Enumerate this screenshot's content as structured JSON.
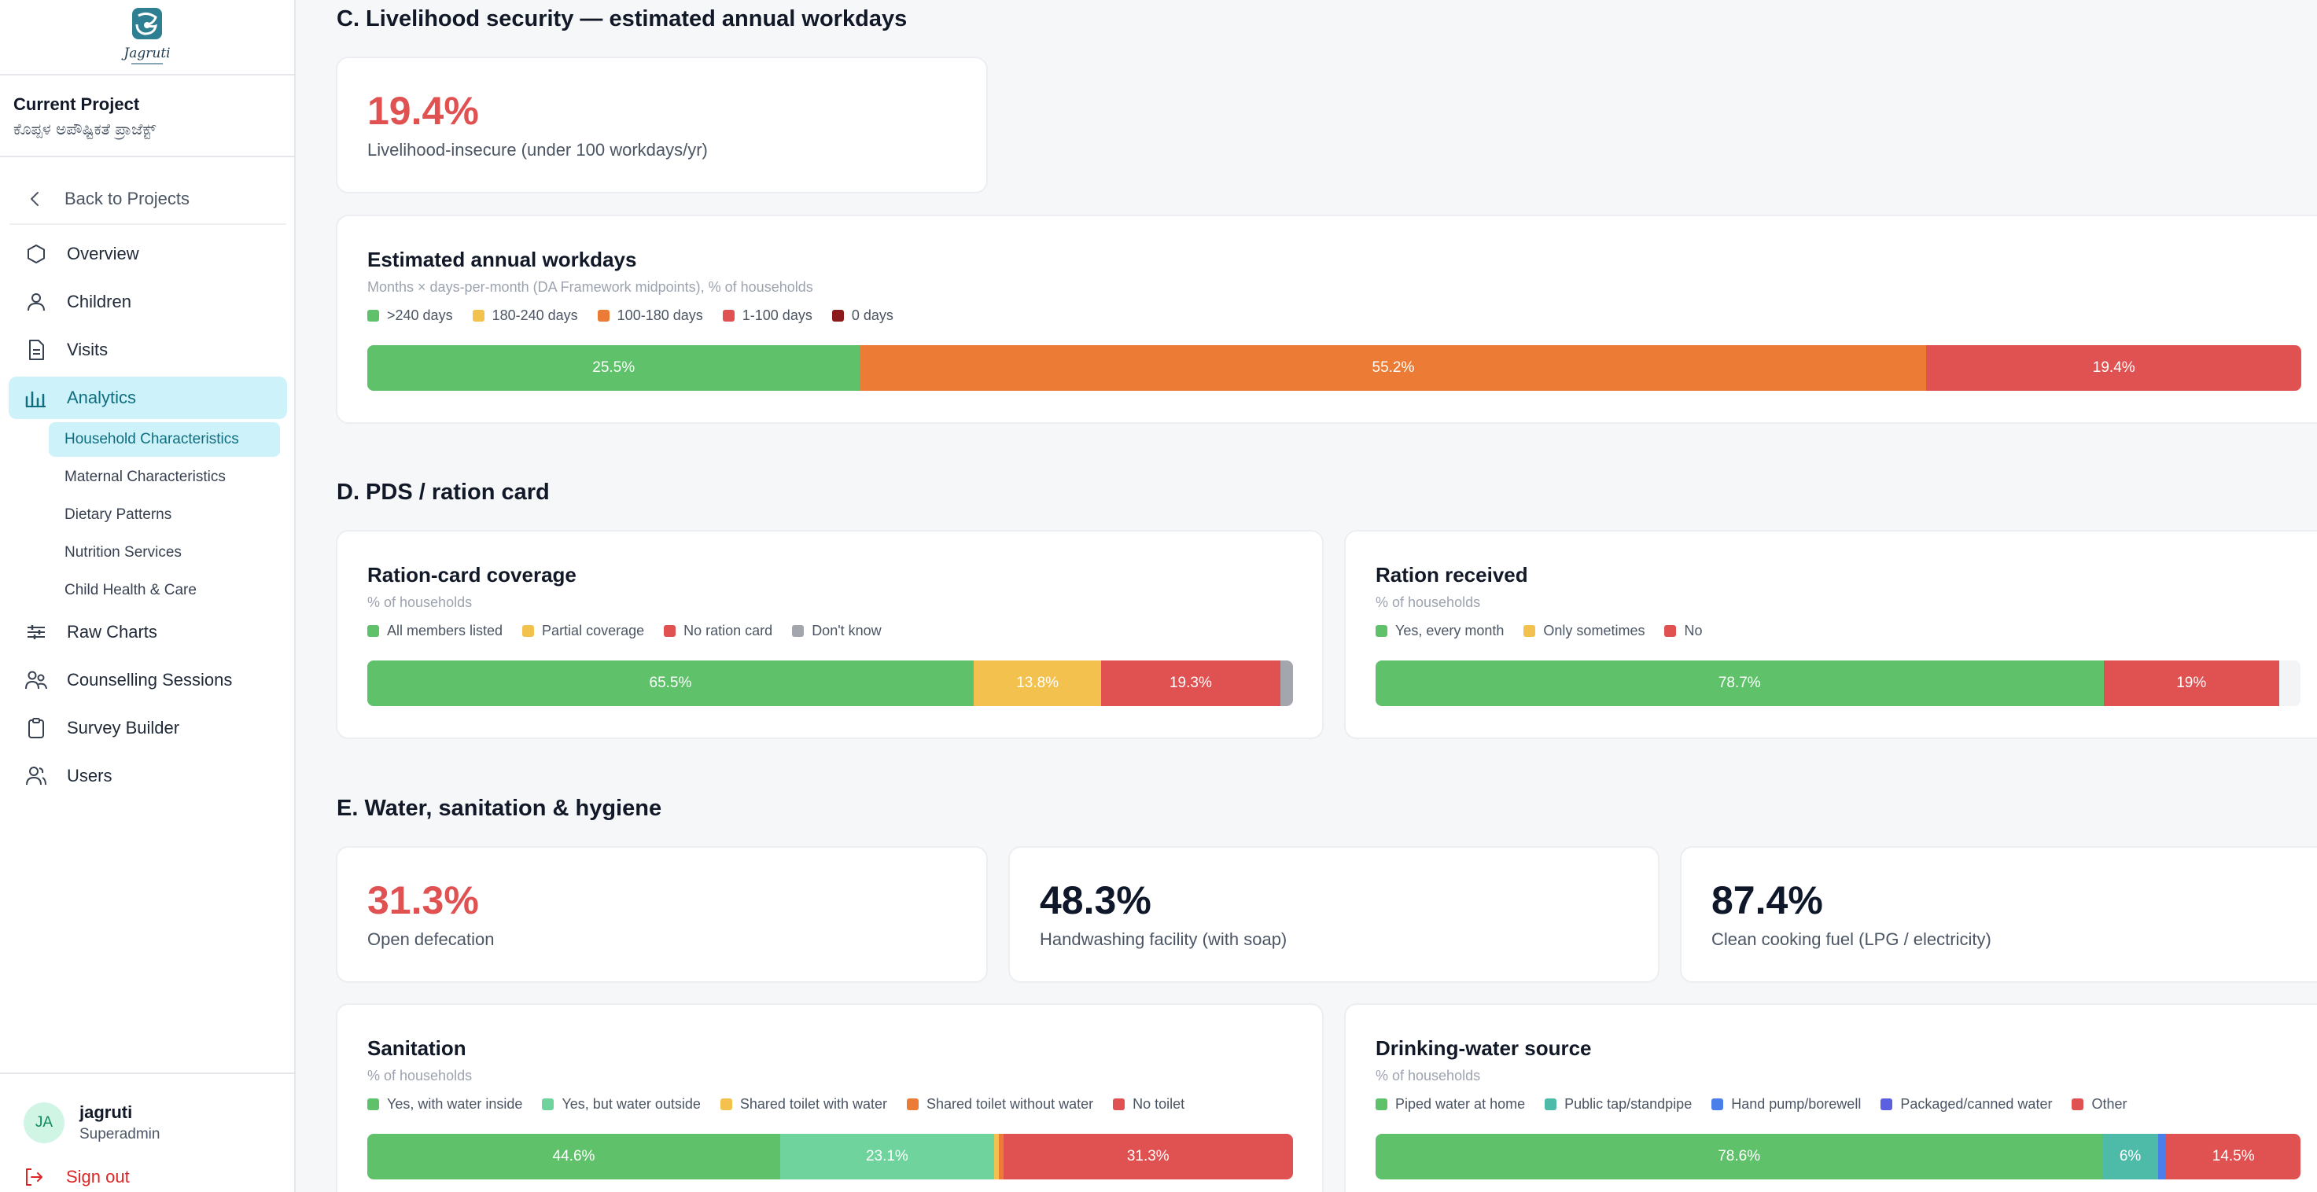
{
  "app": {
    "logo_text": "Jagruti"
  },
  "sidebar": {
    "project_title": "Current Project",
    "project_name": "ಕೊಪ್ಪಳ ಅಪೌಷ್ಟಿಕತೆ ಪ್ರಾಜೆಕ್ಟ್",
    "back_label": "Back to Projects",
    "items": [
      {
        "label": "Overview",
        "icon": "hexagon-icon"
      },
      {
        "label": "Children",
        "icon": "user-icon"
      },
      {
        "label": "Visits",
        "icon": "document-icon"
      },
      {
        "label": "Analytics",
        "icon": "analytics-icon"
      },
      {
        "label": "Raw Charts",
        "icon": "chart-icon"
      },
      {
        "label": "Counselling Sessions",
        "icon": "users-icon"
      },
      {
        "label": "Survey Builder",
        "icon": "clipboard-icon"
      },
      {
        "label": "Users",
        "icon": "user-group-icon"
      }
    ],
    "analytics_sub": [
      "Household Characteristics",
      "Maternal Characteristics",
      "Dietary Patterns",
      "Nutrition Services",
      "Child Health & Care"
    ],
    "user": {
      "initials": "JA",
      "name": "jagruti",
      "role": "Superadmin"
    },
    "signout_label": "Sign out"
  },
  "sections": {
    "c": {
      "title": "C. Livelihood security — estimated annual workdays"
    },
    "d": {
      "title": "D. PDS / ration card"
    },
    "e": {
      "title": "E. Water, sanitation & hygiene"
    }
  },
  "stats": {
    "livelihood": {
      "value": "19.4%",
      "label": "Livelihood-insecure (under 100 workdays/yr)"
    },
    "open_defecation": {
      "value": "31.3%",
      "label": "Open defecation"
    },
    "handwashing": {
      "value": "48.3%",
      "label": "Handwashing facility (with soap)"
    },
    "cooking_fuel": {
      "value": "87.4%",
      "label": "Clean cooking fuel (LPG / electricity)"
    }
  },
  "colors": {
    "green": "#5fc26a",
    "yellow": "#f2c14e",
    "orange": "#ec7c35",
    "red": "#e05252",
    "darkred": "#8b1a1a",
    "gray": "#a3a6ad",
    "teal": "#4dbba8",
    "mint": "#6fd39e",
    "blue": "#4a7ee8",
    "indigo": "#5b5fe0"
  },
  "charts": {
    "workdays": {
      "title": "Estimated annual workdays",
      "subtitle": "Months × days-per-month (DA Framework midpoints), % of households",
      "legend": [
        {
          "label": ">240 days",
          "color": "#5fc26a"
        },
        {
          "label": "180-240 days",
          "color": "#f2c14e"
        },
        {
          "label": "100-180 days",
          "color": "#ec7c35"
        },
        {
          "label": "1-100 days",
          "color": "#e05252"
        },
        {
          "label": "0 days",
          "color": "#8b1a1a"
        }
      ],
      "segments": [
        {
          "value": 25.5,
          "label": "25.5%",
          "color": "#5fc26a"
        },
        {
          "value": 55.2,
          "label": "55.2%",
          "color": "#ec7c35"
        },
        {
          "value": 19.4,
          "label": "19.4%",
          "color": "#e05252"
        }
      ]
    },
    "ration_coverage": {
      "title": "Ration-card coverage",
      "subtitle": "% of households",
      "legend": [
        {
          "label": "All members listed",
          "color": "#5fc26a"
        },
        {
          "label": "Partial coverage",
          "color": "#f2c14e"
        },
        {
          "label": "No ration card",
          "color": "#e05252"
        },
        {
          "label": "Don't know",
          "color": "#a3a6ad"
        }
      ],
      "segments": [
        {
          "value": 65.5,
          "label": "65.5%",
          "color": "#5fc26a"
        },
        {
          "value": 13.8,
          "label": "13.8%",
          "color": "#f2c14e"
        },
        {
          "value": 19.3,
          "label": "19.3%",
          "color": "#e05252"
        },
        {
          "value": 1.4,
          "label": "",
          "color": "#a3a6ad"
        }
      ]
    },
    "ration_received": {
      "title": "Ration received",
      "subtitle": "% of households",
      "legend": [
        {
          "label": "Yes, every month",
          "color": "#5fc26a"
        },
        {
          "label": "Only sometimes",
          "color": "#f2c14e"
        },
        {
          "label": "No",
          "color": "#e05252"
        }
      ],
      "segments": [
        {
          "value": 78.7,
          "label": "78.7%",
          "color": "#5fc26a"
        },
        {
          "value": 19,
          "label": "19%",
          "color": "#e05252"
        }
      ]
    },
    "sanitation": {
      "title": "Sanitation",
      "subtitle": "% of households",
      "legend": [
        {
          "label": "Yes, with water inside",
          "color": "#5fc26a"
        },
        {
          "label": "Yes, but water outside",
          "color": "#6fd39e"
        },
        {
          "label": "Shared toilet with water",
          "color": "#f2c14e"
        },
        {
          "label": "Shared toilet without water",
          "color": "#ec7c35"
        },
        {
          "label": "No toilet",
          "color": "#e05252"
        }
      ],
      "segments": [
        {
          "value": 44.6,
          "label": "44.6%",
          "color": "#5fc26a"
        },
        {
          "value": 23.1,
          "label": "23.1%",
          "color": "#6fd39e"
        },
        {
          "value": 0.5,
          "label": "",
          "color": "#f2c14e"
        },
        {
          "value": 0.5,
          "label": "",
          "color": "#ec7c35"
        },
        {
          "value": 31.3,
          "label": "31.3%",
          "color": "#e05252"
        }
      ]
    },
    "water_source": {
      "title": "Drinking-water source",
      "subtitle": "% of households",
      "legend": [
        {
          "label": "Piped water at home",
          "color": "#5fc26a"
        },
        {
          "label": "Public tap/standpipe",
          "color": "#4dbba8"
        },
        {
          "label": "Hand pump/borewell",
          "color": "#4a7ee8"
        },
        {
          "label": "Packaged/canned water",
          "color": "#5b5fe0"
        },
        {
          "label": "Other",
          "color": "#e05252"
        }
      ],
      "segments": [
        {
          "value": 78.6,
          "label": "78.6%",
          "color": "#5fc26a"
        },
        {
          "value": 6,
          "label": "6%",
          "color": "#4dbba8"
        },
        {
          "value": 0.9,
          "label": "",
          "color": "#4a7ee8"
        },
        {
          "value": 14.5,
          "label": "14.5%",
          "color": "#e05252"
        }
      ]
    }
  }
}
